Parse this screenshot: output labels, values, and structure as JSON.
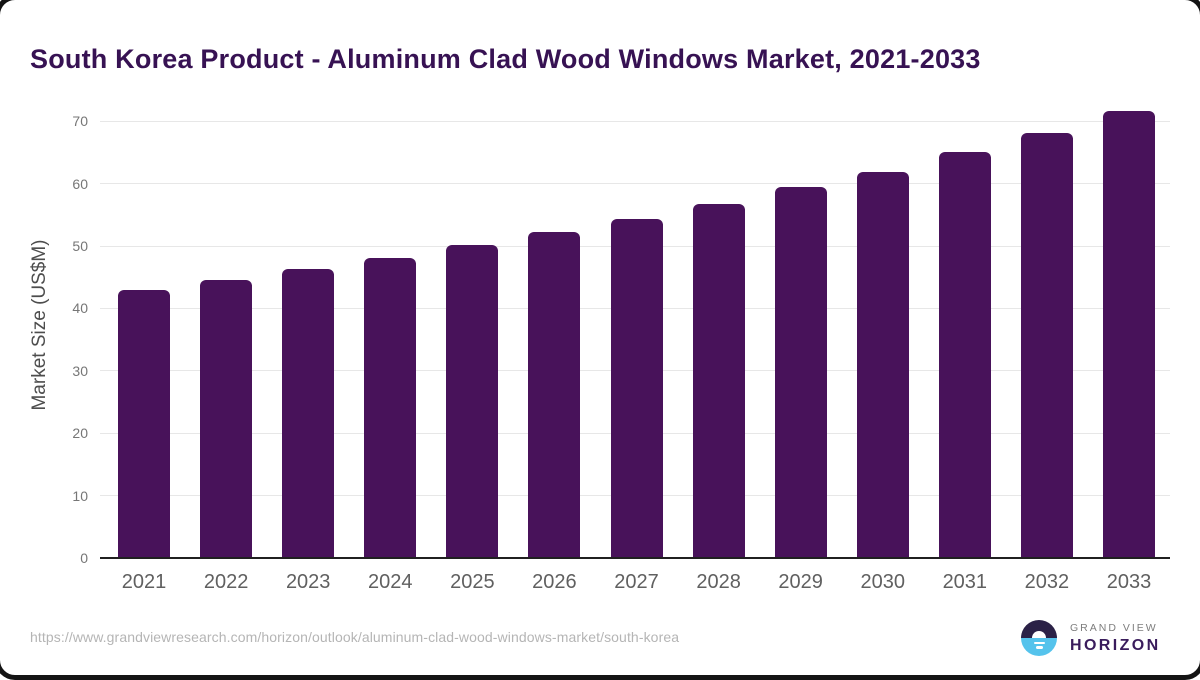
{
  "title": "South Korea Product - Aluminum Clad Wood Windows Market, 2021-2033",
  "footer": {
    "source_url": "https://www.grandviewresearch.com/horizon/outlook/aluminum-clad-wood-windows-market/south-korea",
    "logo": {
      "line1": "GRAND VIEW",
      "line2": "HORIZON"
    }
  },
  "colors": {
    "bar": "#48125A",
    "title": "#371253",
    "gridline": "#e7e7e7",
    "baseline": "#202020",
    "y_tick_label": "#767676",
    "x_tick_label": "#606060",
    "y_axis_label": "#4d4d4d",
    "url_text": "#b5b5b5",
    "logo_top": "#2B2147",
    "logo_bottom": "#55C3EC",
    "logo_text_gray": "#7d7d7d",
    "logo_text_purple": "#3A1C5C"
  },
  "chart_data": {
    "type": "bar",
    "title": "South Korea Product - Aluminum Clad Wood Windows Market, 2021-2033",
    "categories": [
      "2021",
      "2022",
      "2023",
      "2024",
      "2025",
      "2026",
      "2027",
      "2028",
      "2029",
      "2030",
      "2031",
      "2032",
      "2033"
    ],
    "values": [
      42.9,
      44.5,
      46.3,
      48.1,
      50.1,
      52.2,
      54.3,
      56.7,
      59.4,
      61.9,
      65.1,
      68.1,
      71.7
    ],
    "xlabel": "",
    "ylabel": "Market Size (US$M)",
    "ylim": [
      0,
      74.2
    ],
    "yticks": [
      0,
      10,
      20,
      30,
      40,
      50,
      60,
      70
    ],
    "grid": "horizontal-light",
    "legend": "none",
    "bar_color": "#48125A"
  }
}
